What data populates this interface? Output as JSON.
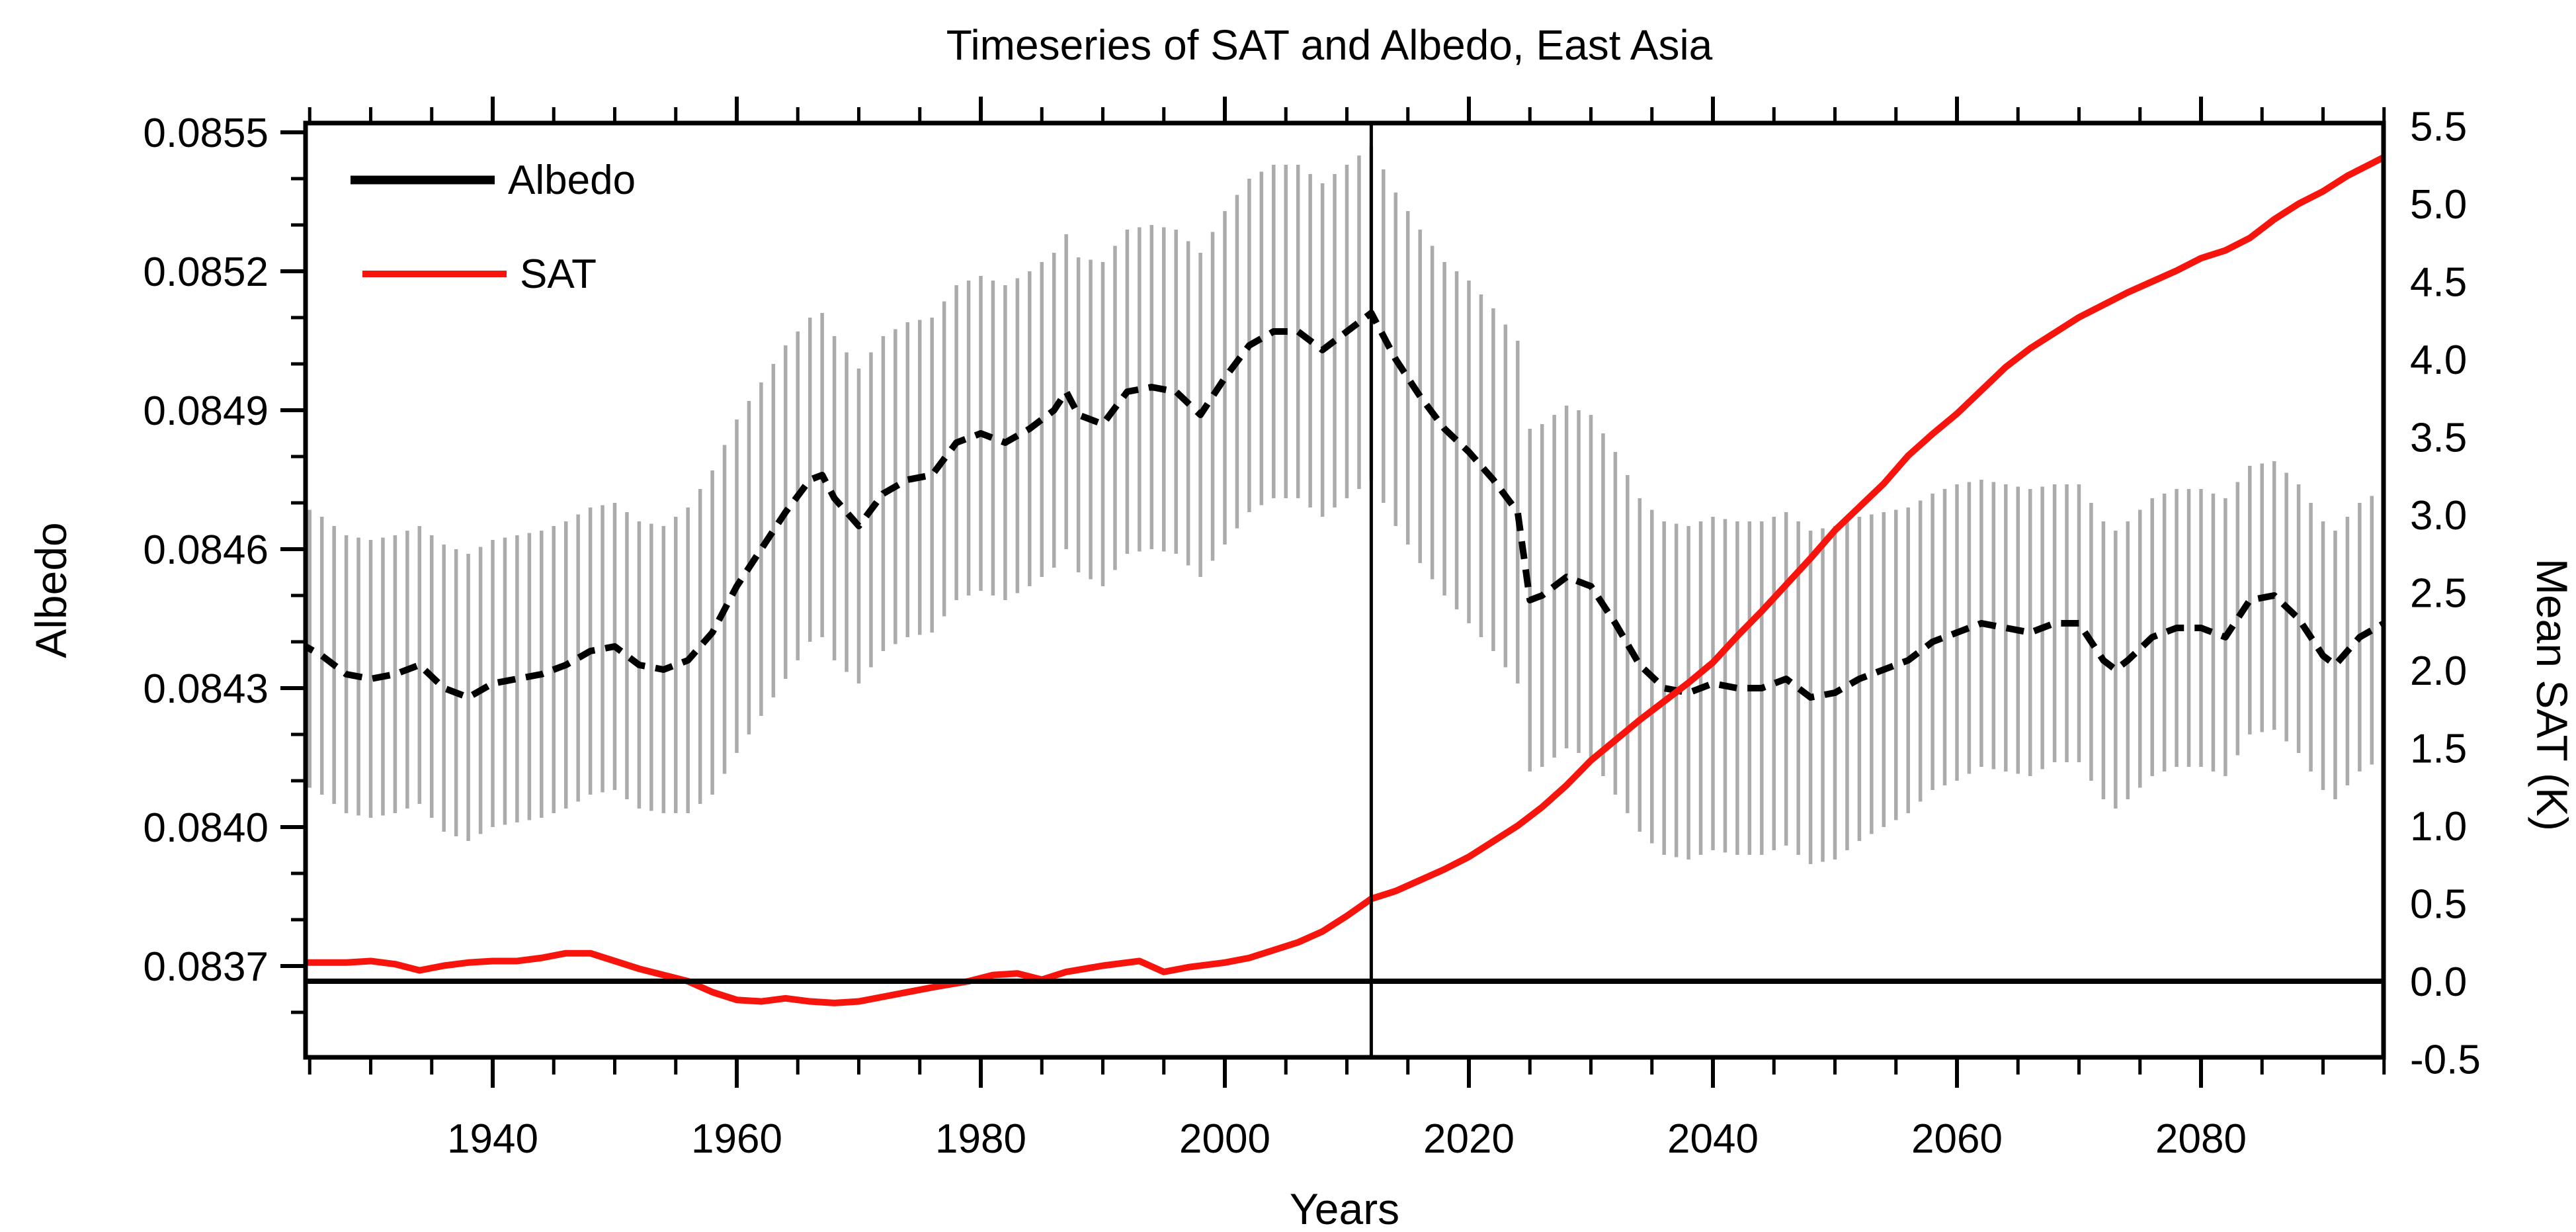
{
  "chart_data": {
    "type": "line",
    "title": "Timeseries of SAT and Albedo, East Asia",
    "xlabel": "Years",
    "ylabel_left": "Albedo",
    "ylabel_right": "Mean SAT (K)",
    "grid": false,
    "legend_position": "top-left",
    "x_axis": {
      "min": 1924.7,
      "max": 2095,
      "major_tick_values": [
        1940,
        1960,
        1980,
        2000,
        2020,
        2040,
        2060,
        2080
      ],
      "major_tick_labels": [
        "1940",
        "1960",
        "1980",
        "2000",
        "2020",
        "2040",
        "2060",
        "2080"
      ],
      "minor_tick_step_years": 5
    },
    "y_axis_left": {
      "min": 0.0835,
      "max": 0.08552,
      "major_tick_values": [
        0.0837,
        0.084,
        0.0843,
        0.0846,
        0.0849,
        0.0852,
        0.0855
      ],
      "major_tick_labels": [
        "0.0837",
        "0.0840",
        "0.0843",
        "0.0846",
        "0.0849",
        "0.0852",
        "0.0855"
      ],
      "minor_tick_step": 0.0001
    },
    "y_axis_right": {
      "min": -0.5,
      "max": 5.52,
      "major_tick_values": [
        -0.5,
        0.0,
        0.5,
        1.0,
        1.5,
        2.0,
        2.5,
        3.0,
        3.5,
        4.0,
        4.5,
        5.0,
        5.5
      ],
      "major_tick_labels": [
        "-0.5",
        "0.0",
        "0.5",
        "1.0",
        "1.5",
        "2.0",
        "2.5",
        "3.0",
        "3.5",
        "4.0",
        "4.5",
        "5.0",
        "5.5"
      ]
    },
    "reference_lines": {
      "vertical_year": 2012,
      "horizontal_sat_value": 0.0
    },
    "error_bars": {
      "series": "Albedo",
      "color": "#ababab",
      "interval_years": 1
    },
    "series": [
      {
        "name": "Albedo",
        "axis": "left",
        "color": "#000000",
        "style": "dashed",
        "points_format": [
          "year",
          "albedo",
          "err_half_width"
        ],
        "points": [
          [
            1924,
            0.0844,
            0.0003
          ],
          [
            1926,
            0.08437,
            0.0003
          ],
          [
            1928,
            0.08433,
            0.0003
          ],
          [
            1930,
            0.08432,
            0.0003
          ],
          [
            1932,
            0.08433,
            0.0003
          ],
          [
            1934,
            0.08435,
            0.0003
          ],
          [
            1936,
            0.0843,
            0.00031
          ],
          [
            1938,
            0.08428,
            0.00031
          ],
          [
            1940,
            0.08431,
            0.00031
          ],
          [
            1942,
            0.08432,
            0.00031
          ],
          [
            1944,
            0.08433,
            0.00031
          ],
          [
            1946,
            0.08435,
            0.00031
          ],
          [
            1948,
            0.08438,
            0.00031
          ],
          [
            1950,
            0.08439,
            0.00031
          ],
          [
            1952,
            0.08435,
            0.00031
          ],
          [
            1954,
            0.08434,
            0.00031
          ],
          [
            1956,
            0.08436,
            0.00033
          ],
          [
            1958,
            0.08442,
            0.00035
          ],
          [
            1960,
            0.08452,
            0.00036
          ],
          [
            1962,
            0.0846,
            0.00036
          ],
          [
            1964,
            0.08468,
            0.00036
          ],
          [
            1966,
            0.08475,
            0.00035
          ],
          [
            1967,
            0.08476,
            0.00035
          ],
          [
            1968,
            0.08471,
            0.00035
          ],
          [
            1970,
            0.08465,
            0.00034
          ],
          [
            1972,
            0.08472,
            0.00034
          ],
          [
            1974,
            0.08475,
            0.00034
          ],
          [
            1976,
            0.08476,
            0.00034
          ],
          [
            1978,
            0.08483,
            0.00034
          ],
          [
            1980,
            0.08485,
            0.00034
          ],
          [
            1982,
            0.08483,
            0.00034
          ],
          [
            1984,
            0.08486,
            0.00034
          ],
          [
            1986,
            0.0849,
            0.00034
          ],
          [
            1987,
            0.08494,
            0.00034
          ],
          [
            1988,
            0.08489,
            0.00034
          ],
          [
            1990,
            0.08487,
            0.00035
          ],
          [
            1992,
            0.08494,
            0.00035
          ],
          [
            1994,
            0.08495,
            0.00035
          ],
          [
            1996,
            0.08494,
            0.00035
          ],
          [
            1998,
            0.08489,
            0.00035
          ],
          [
            2000,
            0.08497,
            0.00036
          ],
          [
            2002,
            0.08504,
            0.00036
          ],
          [
            2004,
            0.08507,
            0.00036
          ],
          [
            2006,
            0.08507,
            0.00036
          ],
          [
            2008,
            0.08503,
            0.00036
          ],
          [
            2010,
            0.08507,
            0.00036
          ],
          [
            2012,
            0.08511,
            0.00036
          ],
          [
            2014,
            0.08501,
            0.00036
          ],
          [
            2016,
            0.08493,
            0.00036
          ],
          [
            2018,
            0.08486,
            0.00036
          ],
          [
            2020,
            0.08481,
            0.00037
          ],
          [
            2022,
            0.08475,
            0.00037
          ],
          [
            2024,
            0.08468,
            0.00037
          ],
          [
            2025,
            0.08449,
            0.00037
          ],
          [
            2026,
            0.0845,
            0.00037
          ],
          [
            2028,
            0.08454,
            0.00037
          ],
          [
            2030,
            0.08452,
            0.00037
          ],
          [
            2032,
            0.08444,
            0.00037
          ],
          [
            2034,
            0.08435,
            0.00036
          ],
          [
            2036,
            0.0843,
            0.00036
          ],
          [
            2038,
            0.08429,
            0.00036
          ],
          [
            2040,
            0.08431,
            0.00036
          ],
          [
            2042,
            0.0843,
            0.00036
          ],
          [
            2044,
            0.0843,
            0.00036
          ],
          [
            2046,
            0.08432,
            0.00036
          ],
          [
            2048,
            0.08428,
            0.00036
          ],
          [
            2050,
            0.08429,
            0.00036
          ],
          [
            2052,
            0.08432,
            0.00035
          ],
          [
            2054,
            0.08434,
            0.00034
          ],
          [
            2056,
            0.08436,
            0.00033
          ],
          [
            2058,
            0.0844,
            0.00032
          ],
          [
            2060,
            0.08442,
            0.00032
          ],
          [
            2062,
            0.08444,
            0.00031
          ],
          [
            2064,
            0.08443,
            0.00031
          ],
          [
            2066,
            0.08442,
            0.00031
          ],
          [
            2068,
            0.08444,
            0.0003
          ],
          [
            2070,
            0.08444,
            0.0003
          ],
          [
            2072,
            0.08436,
            0.0003
          ],
          [
            2073,
            0.08434,
            0.0003
          ],
          [
            2074,
            0.08436,
            0.0003
          ],
          [
            2076,
            0.08441,
            0.0003
          ],
          [
            2078,
            0.08443,
            0.0003
          ],
          [
            2080,
            0.08443,
            0.0003
          ],
          [
            2082,
            0.08441,
            0.0003
          ],
          [
            2084,
            0.08449,
            0.00029
          ],
          [
            2086,
            0.0845,
            0.00029
          ],
          [
            2088,
            0.08445,
            0.00029
          ],
          [
            2090,
            0.08437,
            0.00029
          ],
          [
            2091,
            0.08435,
            0.00029
          ],
          [
            2093,
            0.08441,
            0.00029
          ],
          [
            2095,
            0.08444,
            0.00029
          ]
        ]
      },
      {
        "name": "SAT",
        "axis": "right",
        "color": "#f6140c",
        "style": "solid",
        "points_format": [
          "year",
          "sat_K"
        ],
        "points": [
          [
            1924,
            0.12
          ],
          [
            1926,
            0.12
          ],
          [
            1928,
            0.12
          ],
          [
            1930,
            0.13
          ],
          [
            1932,
            0.11
          ],
          [
            1934,
            0.07
          ],
          [
            1936,
            0.1
          ],
          [
            1938,
            0.12
          ],
          [
            1940,
            0.13
          ],
          [
            1942,
            0.13
          ],
          [
            1944,
            0.15
          ],
          [
            1946,
            0.18
          ],
          [
            1948,
            0.18
          ],
          [
            1950,
            0.13
          ],
          [
            1952,
            0.08
          ],
          [
            1954,
            0.04
          ],
          [
            1956,
            0.0
          ],
          [
            1958,
            -0.07
          ],
          [
            1960,
            -0.12
          ],
          [
            1962,
            -0.13
          ],
          [
            1964,
            -0.11
          ],
          [
            1966,
            -0.13
          ],
          [
            1968,
            -0.14
          ],
          [
            1970,
            -0.13
          ],
          [
            1972,
            -0.1
          ],
          [
            1974,
            -0.07
          ],
          [
            1976,
            -0.04
          ],
          [
            1979,
            0.0
          ],
          [
            1981,
            0.04
          ],
          [
            1983,
            0.05
          ],
          [
            1985,
            0.01
          ],
          [
            1987,
            0.06
          ],
          [
            1990,
            0.1
          ],
          [
            1993,
            0.13
          ],
          [
            1995,
            0.06
          ],
          [
            1997,
            0.09
          ],
          [
            2000,
            0.12
          ],
          [
            2002,
            0.15
          ],
          [
            2004,
            0.2
          ],
          [
            2006,
            0.25
          ],
          [
            2008,
            0.32
          ],
          [
            2010,
            0.42
          ],
          [
            2012,
            0.53
          ],
          [
            2014,
            0.58
          ],
          [
            2016,
            0.65
          ],
          [
            2018,
            0.72
          ],
          [
            2020,
            0.8
          ],
          [
            2022,
            0.9
          ],
          [
            2024,
            1.0
          ],
          [
            2026,
            1.12
          ],
          [
            2028,
            1.26
          ],
          [
            2030,
            1.42
          ],
          [
            2032,
            1.55
          ],
          [
            2034,
            1.68
          ],
          [
            2036,
            1.8
          ],
          [
            2038,
            1.92
          ],
          [
            2040,
            2.05
          ],
          [
            2042,
            2.22
          ],
          [
            2044,
            2.38
          ],
          [
            2046,
            2.55
          ],
          [
            2048,
            2.72
          ],
          [
            2050,
            2.9
          ],
          [
            2052,
            3.05
          ],
          [
            2054,
            3.2
          ],
          [
            2056,
            3.38
          ],
          [
            2058,
            3.52
          ],
          [
            2060,
            3.65
          ],
          [
            2062,
            3.8
          ],
          [
            2064,
            3.95
          ],
          [
            2066,
            4.07
          ],
          [
            2068,
            4.17
          ],
          [
            2070,
            4.27
          ],
          [
            2072,
            4.35
          ],
          [
            2074,
            4.43
          ],
          [
            2076,
            4.5
          ],
          [
            2078,
            4.57
          ],
          [
            2080,
            4.65
          ],
          [
            2082,
            4.7
          ],
          [
            2084,
            4.78
          ],
          [
            2086,
            4.9
          ],
          [
            2088,
            5.0
          ],
          [
            2090,
            5.08
          ],
          [
            2092,
            5.18
          ],
          [
            2094,
            5.26
          ],
          [
            2095,
            5.3
          ]
        ]
      }
    ]
  }
}
